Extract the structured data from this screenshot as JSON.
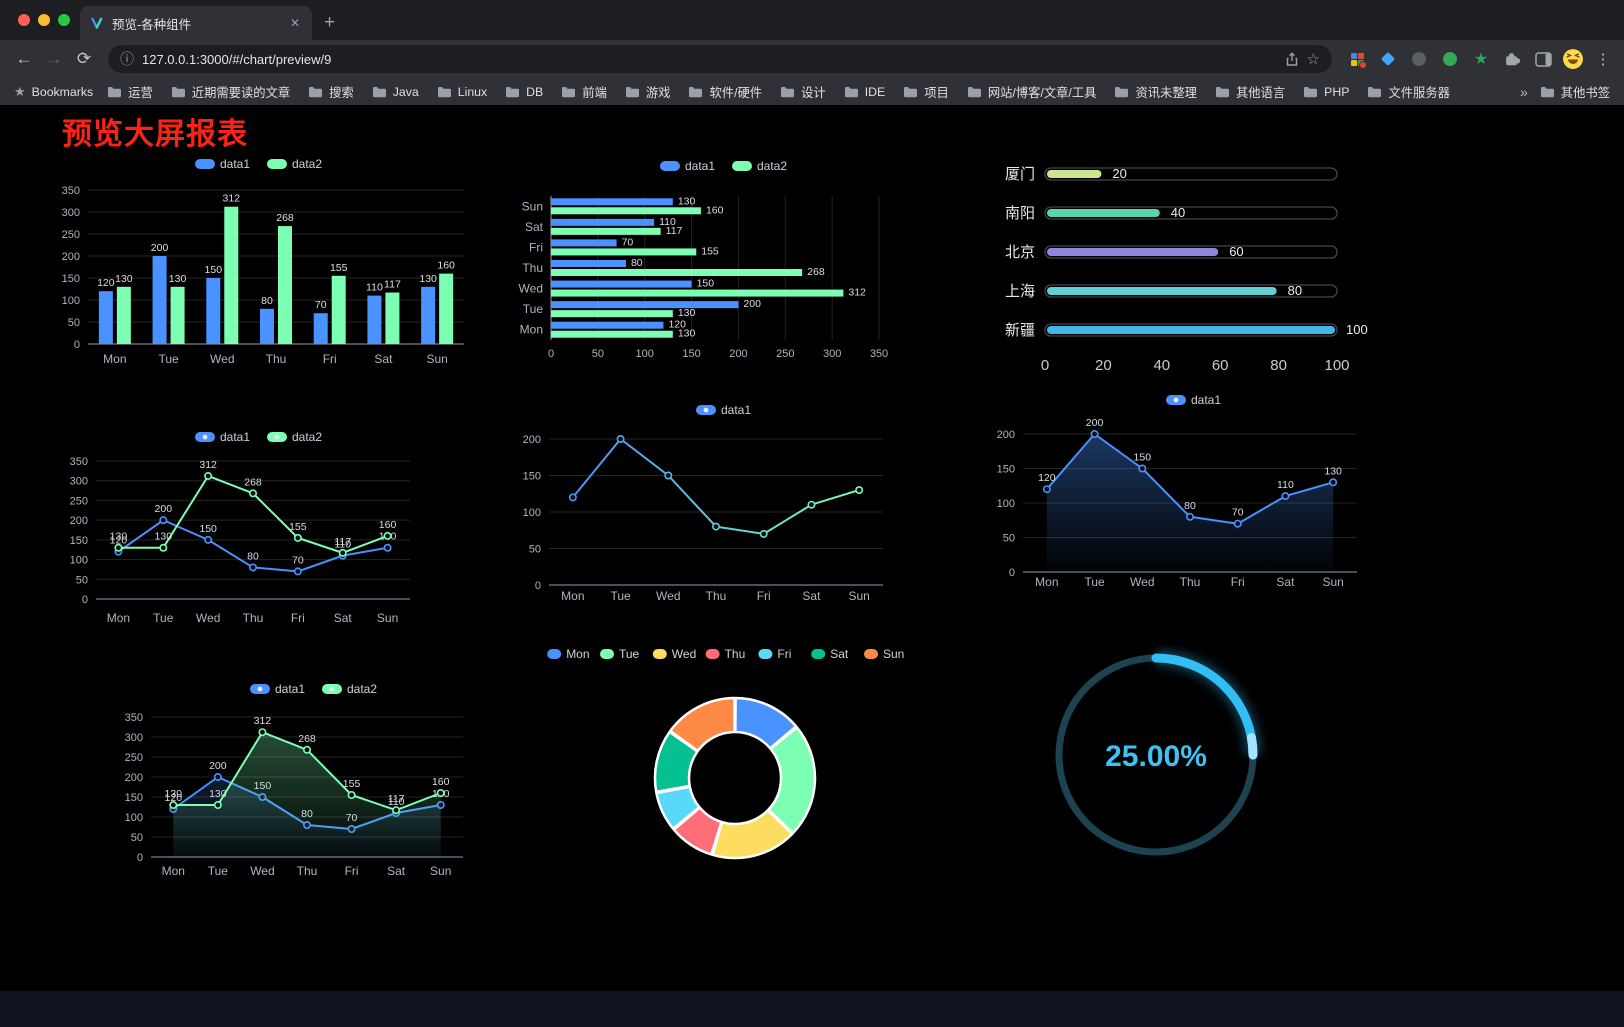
{
  "browser": {
    "tab_title": "预览-各种组件",
    "url": "127.0.0.1:3000/#/chart/preview/9",
    "bookmarks_label": "Bookmarks",
    "bookmarks": [
      "运营",
      "近期需要读的文章",
      "搜索",
      "Java",
      "Linux",
      "DB",
      "前端",
      "游戏",
      "软件/硬件",
      "设计",
      "IDE",
      "项目",
      "网站/博客/文章/工具",
      "资讯未整理",
      "其他语言",
      "PHP",
      "文件服务器"
    ],
    "other_bookmarks": "其他书签",
    "icons": {
      "back": "←",
      "forward": "→",
      "reload": "⟳",
      "new_tab": "+",
      "close_tab": "✕",
      "info": "ⓘ",
      "more": "⋮",
      "overflow": "»",
      "bookmark_star": "★",
      "bookmark_page": "☆",
      "ext_star": "★"
    }
  },
  "page": {
    "title": "预览大屏报表",
    "title_color": "#fa2317"
  },
  "palette": {
    "series_blue": "#4992ff",
    "series_green": "#7cffb2",
    "axis_text": "#b2b2c3",
    "value_text": "#dcdde3"
  },
  "chart_data": [
    {
      "id": "grouped-bar",
      "type": "bar",
      "categories": [
        "Mon",
        "Tue",
        "Wed",
        "Thu",
        "Fri",
        "Sat",
        "Sun"
      ],
      "series": [
        {
          "name": "data1",
          "color": "#4992ff",
          "values": [
            120,
            200,
            150,
            80,
            70,
            110,
            130
          ],
          "labels": true
        },
        {
          "name": "data2",
          "color": "#7cffb2",
          "values": [
            130,
            130,
            312,
            268,
            155,
            117,
            160
          ],
          "labels": true
        }
      ],
      "ylim": [
        0,
        350
      ],
      "yticks": [
        0,
        50,
        100,
        150,
        200,
        250,
        300,
        350
      ],
      "legend_position": "top",
      "grid": true
    },
    {
      "id": "horizontal-bar",
      "type": "bar-horizontal",
      "categories": [
        "Mon",
        "Tue",
        "Wed",
        "Thu",
        "Fri",
        "Sat",
        "Sun"
      ],
      "series": [
        {
          "name": "data1",
          "color": "#4992ff",
          "values": [
            120,
            200,
            150,
            80,
            70,
            110,
            130
          ],
          "labels": true
        },
        {
          "name": "data2",
          "color": "#7cffb2",
          "values": [
            130,
            130,
            312,
            268,
            155,
            117,
            160
          ],
          "labels": true
        }
      ],
      "xlim": [
        0,
        350
      ],
      "xticks": [
        0,
        50,
        100,
        150,
        200,
        250,
        300,
        350
      ],
      "legend_position": "top",
      "grid": true
    },
    {
      "id": "progress-list",
      "type": "progress",
      "items": [
        {
          "label": "厦门",
          "value": 20,
          "color": "#cde790"
        },
        {
          "label": "南阳",
          "value": 40,
          "color": "#58d5a9"
        },
        {
          "label": "北京",
          "value": 60,
          "color": "#8f86dd"
        },
        {
          "label": "上海",
          "value": 80,
          "color": "#62cfd2"
        },
        {
          "label": "新疆",
          "value": 100,
          "color": "#41b7e8"
        }
      ],
      "xlim": [
        0,
        100
      ],
      "xticks": [
        0,
        20,
        40,
        60,
        80,
        100
      ]
    },
    {
      "id": "two-line",
      "type": "line",
      "categories": [
        "Mon",
        "Tue",
        "Wed",
        "Thu",
        "Fri",
        "Sat",
        "Sun"
      ],
      "series": [
        {
          "name": "data1",
          "color": "#4992ff",
          "values": [
            120,
            200,
            150,
            80,
            70,
            110,
            130
          ],
          "labels": true
        },
        {
          "name": "data2",
          "color": "#7cffb2",
          "values": [
            130,
            130,
            312,
            268,
            155,
            117,
            160
          ],
          "labels": true
        }
      ],
      "ylim": [
        0,
        350
      ],
      "yticks": [
        0,
        50,
        100,
        150,
        200,
        250,
        300,
        350
      ],
      "legend_position": "top",
      "grid": true
    },
    {
      "id": "gradient-line",
      "type": "line",
      "categories": [
        "Mon",
        "Tue",
        "Wed",
        "Thu",
        "Fri",
        "Sat",
        "Sun"
      ],
      "series": [
        {
          "name": "data1",
          "color": [
            "#4992ff",
            "#7cffb2"
          ],
          "values": [
            120,
            200,
            150,
            80,
            70,
            110,
            130
          ],
          "labels": false
        }
      ],
      "ylim": [
        0,
        200
      ],
      "yticks": [
        0,
        50,
        100,
        150,
        200
      ],
      "legend_position": "top",
      "grid": true
    },
    {
      "id": "area-line",
      "type": "line",
      "categories": [
        "Mon",
        "Tue",
        "Wed",
        "Thu",
        "Fri",
        "Sat",
        "Sun"
      ],
      "series": [
        {
          "name": "data1",
          "color": "#4992ff",
          "values": [
            120,
            200,
            150,
            80,
            70,
            110,
            130
          ],
          "labels": true,
          "area": {
            "from": "rgba(73,146,255,0.38)",
            "to": "rgba(73,146,255,0.02)"
          }
        }
      ],
      "ylim": [
        0,
        200
      ],
      "yticks": [
        0,
        50,
        100,
        150,
        200
      ],
      "legend_position": "top",
      "grid": true
    },
    {
      "id": "two-line-area",
      "type": "line",
      "categories": [
        "Mon",
        "Tue",
        "Wed",
        "Thu",
        "Fri",
        "Sat",
        "Sun"
      ],
      "series": [
        {
          "name": "data1",
          "color": "#4992ff",
          "values": [
            120,
            200,
            150,
            80,
            70,
            110,
            130
          ],
          "labels": true,
          "area": {
            "from": "rgba(73,146,255,0.20)",
            "to": "rgba(73,146,255,0.02)"
          }
        },
        {
          "name": "data2",
          "color": "#7cffb2",
          "values": [
            130,
            130,
            312,
            268,
            155,
            117,
            160
          ],
          "labels": true,
          "area": {
            "from": "rgba(124,255,178,0.30)",
            "to": "rgba(124,255,178,0.03)"
          }
        }
      ],
      "ylim": [
        0,
        350
      ],
      "yticks": [
        0,
        50,
        100,
        150,
        200,
        250,
        300,
        350
      ],
      "legend_position": "top",
      "grid": true
    },
    {
      "id": "donut",
      "type": "donut",
      "legend": [
        "Mon",
        "Tue",
        "Wed",
        "Thu",
        "Fri",
        "Sat",
        "Sun"
      ],
      "values": [
        120,
        200,
        150,
        80,
        70,
        110,
        130
      ],
      "colors": [
        "#4992ff",
        "#7cffb2",
        "#fddd60",
        "#ff6e76",
        "#58d9f9",
        "#05c091",
        "#ff8a45"
      ],
      "legend_position": "top"
    },
    {
      "id": "gauge",
      "type": "gauge",
      "value": 25,
      "label": "25.00%",
      "color": "#33bdf5",
      "highlight": "#a4e4ff",
      "track": "#1d4250",
      "text_color": "#3fc1f2"
    }
  ]
}
